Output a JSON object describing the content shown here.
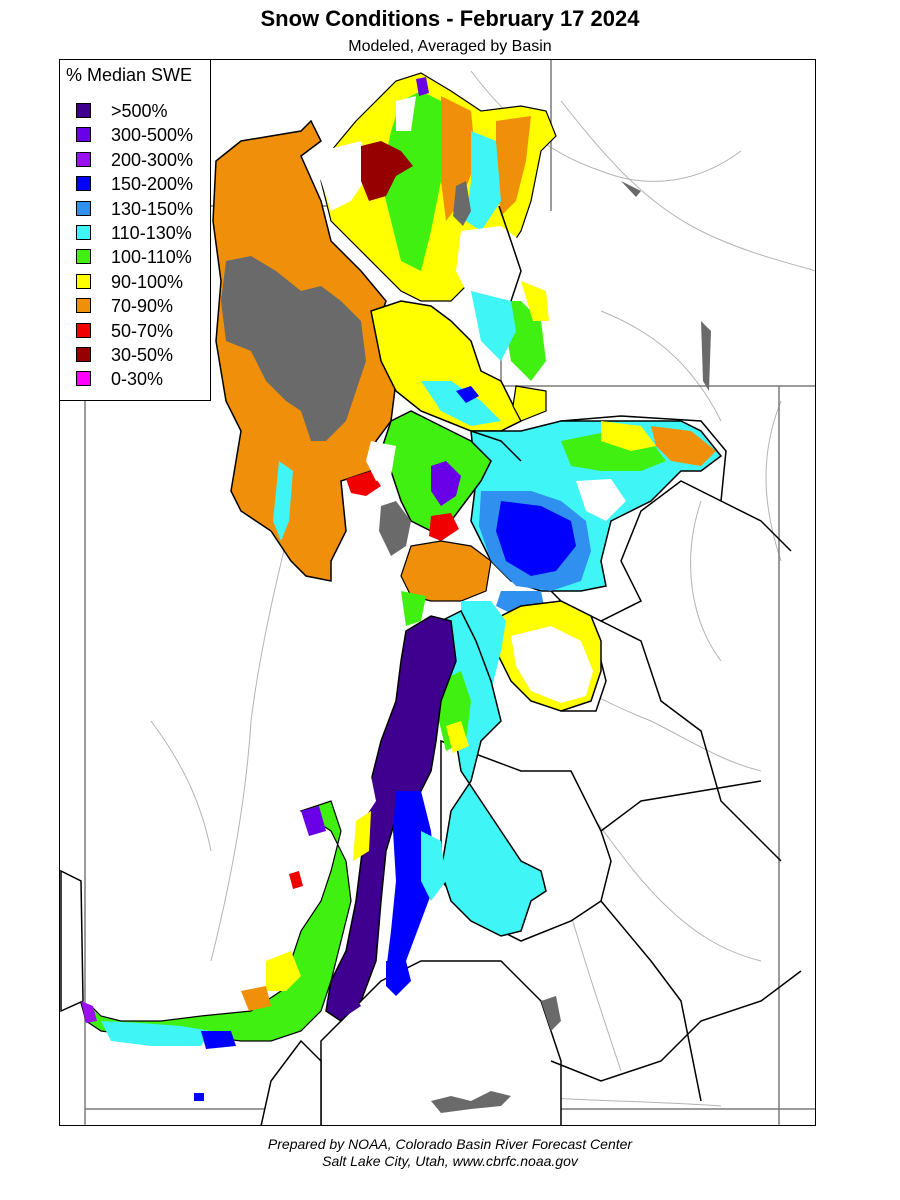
{
  "title": "Snow Conditions - February 17 2024",
  "subtitle": "Modeled, Averaged by Basin",
  "legend": {
    "title": "% Median SWE",
    "items": [
      {
        "label": ">500%",
        "color": "#3f0090"
      },
      {
        "label": "300-500%",
        "color": "#6a00e8"
      },
      {
        "label": "200-300%",
        "color": "#9a10f0"
      },
      {
        "label": "150-200%",
        "color": "#0000ff"
      },
      {
        "label": "130-150%",
        "color": "#3090f0"
      },
      {
        "label": "110-130%",
        "color": "#40f5f5"
      },
      {
        "label": "100-110%",
        "color": "#40f010"
      },
      {
        "label": "90-100%",
        "color": "#ffff00"
      },
      {
        "label": "70-90%",
        "color": "#f0900a"
      },
      {
        "label": "50-70%",
        "color": "#f00000"
      },
      {
        "label": "30-50%",
        "color": "#960000"
      },
      {
        "label": "0-30%",
        "color": "#ff00ff"
      }
    ]
  },
  "colors": {
    "lake": "#6a6a6a",
    "basin_border": "#000000",
    "state_border": "#7a7a7a",
    "river": "#b4b4b4"
  },
  "credits": {
    "line1": "Prepared by NOAA, Colorado Basin River Forecast Center",
    "line2": "Salt Lake City, Utah, www.cbrfc.noaa.gov"
  }
}
